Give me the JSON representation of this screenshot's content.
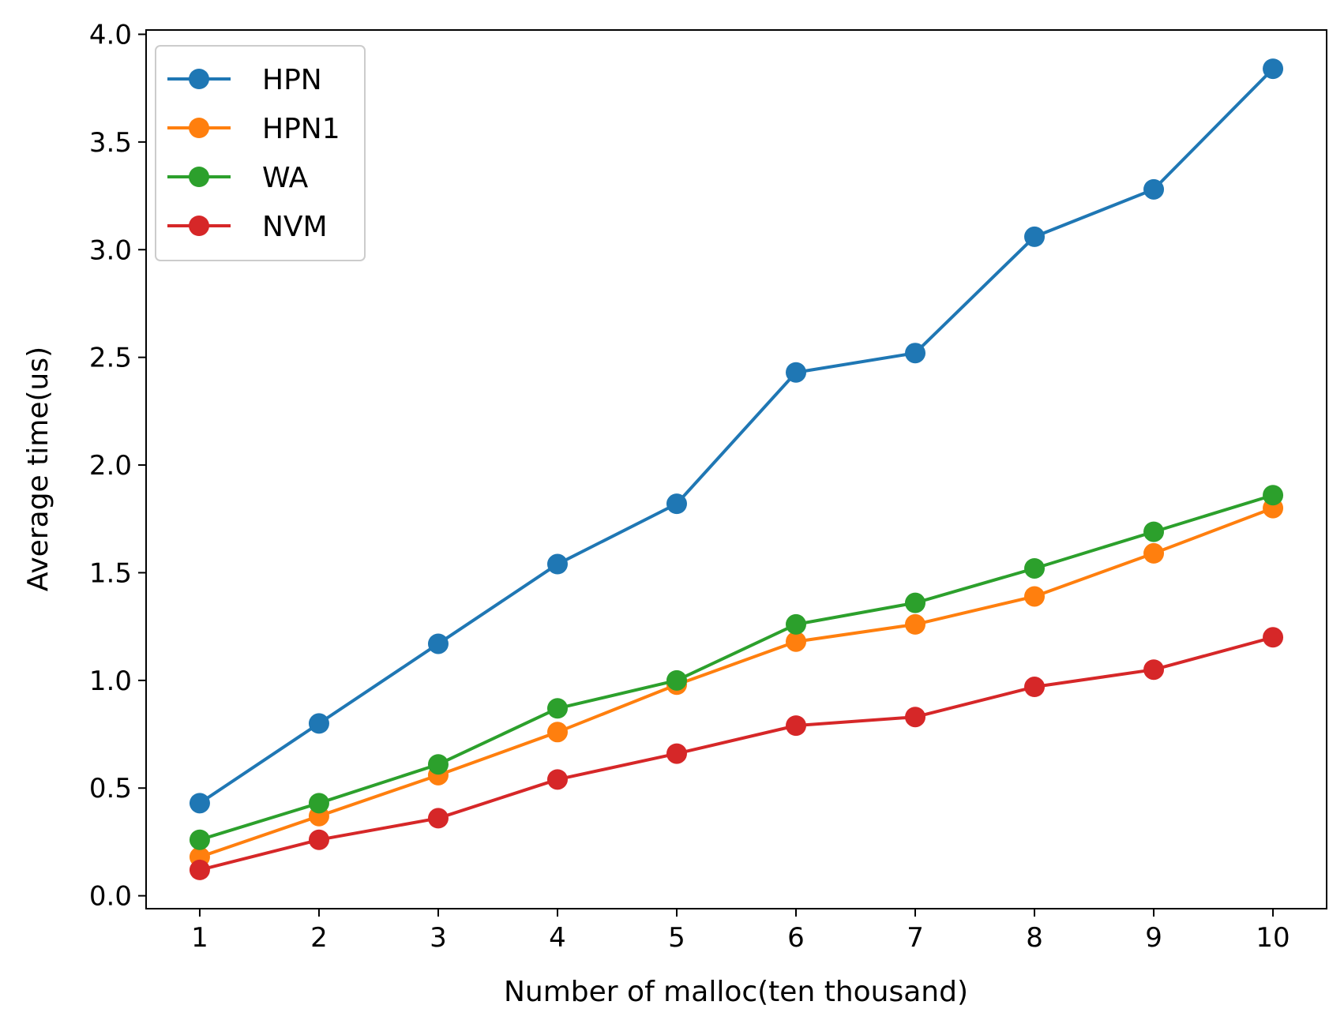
{
  "chart_data": {
    "type": "line",
    "title": "",
    "xlabel": "Number of malloc(ten thousand)",
    "ylabel": "Average time(us)",
    "xlim": [
      0.55,
      10.45
    ],
    "ylim": [
      -0.06,
      4.02
    ],
    "x": [
      1,
      2,
      3,
      4,
      5,
      6,
      7,
      8,
      9,
      10
    ],
    "x_ticks": [
      "1",
      "2",
      "3",
      "4",
      "5",
      "6",
      "7",
      "8",
      "9",
      "10"
    ],
    "y_ticks": [
      "0.0",
      "0.5",
      "1.0",
      "1.5",
      "2.0",
      "2.5",
      "3.0",
      "3.5",
      "4.0"
    ],
    "grid": false,
    "legend_position": "top-left",
    "series": [
      {
        "name": "HPN",
        "color": "#1f77b4",
        "values": [
          0.43,
          0.8,
          1.17,
          1.54,
          1.82,
          2.43,
          2.52,
          3.06,
          3.28,
          3.84
        ]
      },
      {
        "name": "HPN1",
        "color": "#ff7f0e",
        "values": [
          0.18,
          0.37,
          0.56,
          0.76,
          0.98,
          1.18,
          1.26,
          1.39,
          1.59,
          1.8
        ]
      },
      {
        "name": "WA",
        "color": "#2ca02c",
        "values": [
          0.26,
          0.43,
          0.61,
          0.87,
          1.0,
          1.26,
          1.36,
          1.52,
          1.69,
          1.86
        ]
      },
      {
        "name": "NVM",
        "color": "#d62728",
        "values": [
          0.12,
          0.26,
          0.36,
          0.54,
          0.66,
          0.79,
          0.83,
          0.97,
          1.05,
          1.2
        ]
      }
    ]
  }
}
